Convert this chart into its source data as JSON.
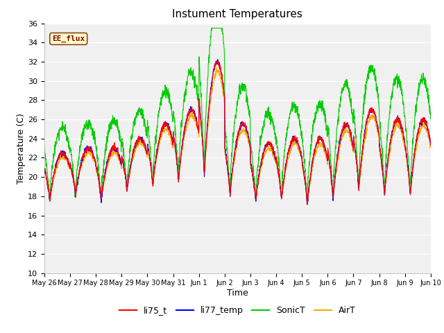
{
  "title": "Instument Temperatures",
  "xlabel": "Time",
  "ylabel": "Temperature (C)",
  "ylim": [
    10,
    36
  ],
  "annotation": "EE_flux",
  "legend_labels": [
    "li75_t",
    "li77_temp",
    "SonicT",
    "AirT"
  ],
  "line_colors": [
    "#ff0000",
    "#0000ff",
    "#00cc00",
    "#ffaa00"
  ],
  "x_tick_labels": [
    "May 26",
    "May 27",
    "May 28",
    "May 29",
    "May 30",
    "May 31",
    "Jun 1",
    "Jun 2",
    "Jun 3",
    "Jun 4",
    "Jun 5",
    "Jun 6",
    "Jun 7",
    "Jun 8",
    "Jun 9",
    "Jun 10"
  ],
  "n_days": 15,
  "pts_per_day": 144
}
